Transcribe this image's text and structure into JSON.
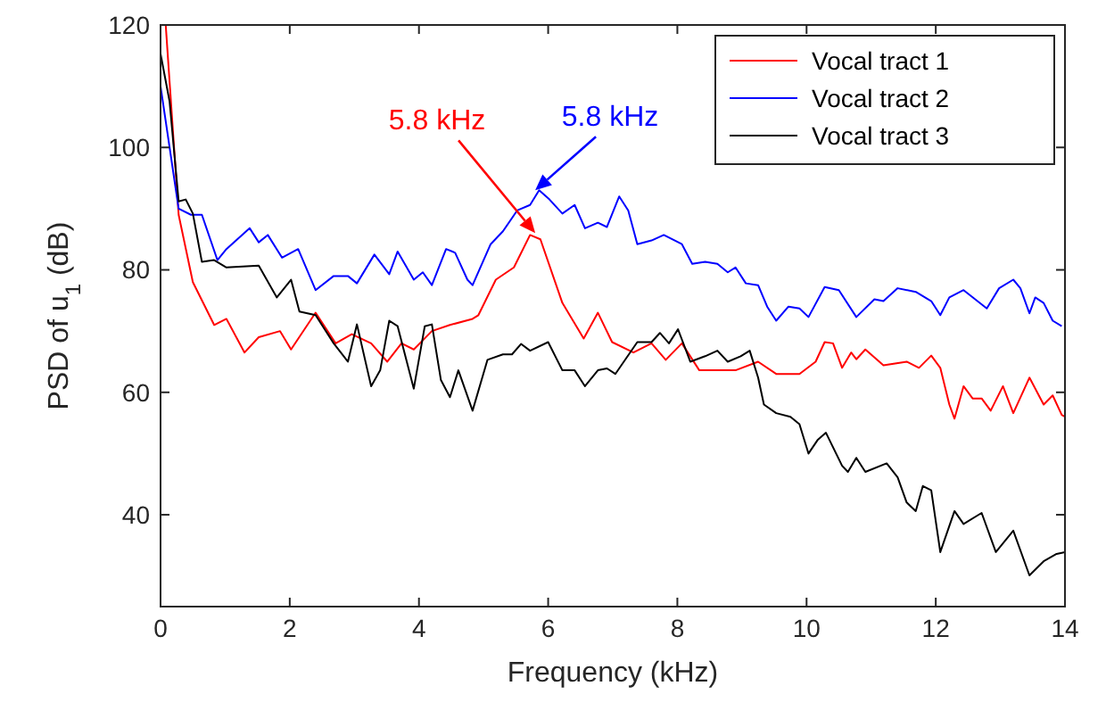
{
  "chart_data": {
    "type": "line",
    "xlabel": "Frequency (kHz)",
    "ylabel": "PSD of u$_{1}$ (dB)",
    "xlim": [
      0,
      14
    ],
    "ylim": [
      25,
      120
    ],
    "xticks": [
      0,
      2,
      4,
      6,
      8,
      10,
      12,
      14
    ],
    "yticks": [
      40,
      60,
      80,
      100,
      120
    ],
    "grid": false,
    "legend": "top right",
    "line_style": "solid",
    "marker": "none",
    "annotations": [
      {
        "text": "5.8 kHz",
        "x": 5.8,
        "y": 86
      },
      {
        "text": "5.8 kHz",
        "x": 5.8,
        "y": 93
      }
    ],
    "series": [
      {
        "name": "Vocal tract 1",
        "color": "#ff0000",
        "x": [
          0.08,
          0.28,
          0.5,
          0.83,
          1.02,
          1.3,
          1.52,
          1.85,
          2.02,
          2.4,
          2.71,
          2.96,
          3.26,
          3.51,
          3.73,
          3.92,
          4.2,
          4.48,
          4.83,
          4.92,
          5.19,
          5.47,
          5.72,
          5.88,
          6.22,
          6.55,
          6.77,
          6.99,
          7.32,
          7.6,
          7.82,
          8.07,
          8.34,
          8.62,
          8.9,
          9.25,
          9.53,
          9.89,
          10.14,
          10.28,
          10.41,
          10.55,
          10.69,
          10.77,
          10.91,
          11.19,
          11.55,
          11.74,
          11.93,
          12.07,
          12.21,
          12.29,
          12.43,
          12.57,
          12.71,
          12.85,
          13.04,
          13.2,
          13.45,
          13.67,
          13.81,
          13.95,
          14
        ],
        "values": [
          120,
          89,
          78,
          71,
          72,
          66.5,
          69,
          70,
          67,
          73,
          68,
          69.5,
          68,
          65,
          68,
          67,
          70,
          71,
          72,
          72.6,
          78.4,
          80.4,
          85.7,
          85,
          74.6,
          68.8,
          73,
          68.2,
          66.5,
          68,
          65.3,
          68,
          63.6,
          63.6,
          63.6,
          65,
          63,
          63,
          65,
          68.2,
          68,
          64,
          66.5,
          65.4,
          67,
          64.4,
          65,
          64,
          66,
          64,
          58,
          55.7,
          61,
          59,
          59,
          57,
          61,
          56.6,
          62.4,
          58,
          59.5,
          56.3,
          56
        ]
      },
      {
        "name": "Vocal tract 2",
        "color": "#0000ff",
        "x": [
          0,
          0.28,
          0.47,
          0.64,
          0.88,
          1.02,
          1.38,
          1.52,
          1.66,
          1.88,
          2.13,
          2.4,
          2.68,
          2.9,
          3.04,
          3.31,
          3.54,
          3.67,
          3.92,
          4.06,
          4.2,
          4.42,
          4.56,
          4.75,
          4.83,
          5.11,
          5.3,
          5.52,
          5.72,
          5.86,
          6.02,
          6.22,
          6.41,
          6.57,
          6.77,
          6.91,
          7.1,
          7.24,
          7.38,
          7.6,
          7.79,
          8.07,
          8.23,
          8.43,
          8.62,
          8.78,
          8.9,
          9.06,
          9.25,
          9.39,
          9.53,
          9.72,
          9.89,
          10.03,
          10.28,
          10.5,
          10.77,
          11.05,
          11.19,
          11.41,
          11.69,
          11.93,
          12.07,
          12.21,
          12.43,
          12.79,
          12.98,
          13.2,
          13.31,
          13.45,
          13.54,
          13.67,
          13.81,
          13.95
        ],
        "values": [
          110,
          90,
          89,
          89,
          81.6,
          83.4,
          86.8,
          84.5,
          85.7,
          82,
          83.4,
          76.7,
          79,
          79,
          77.8,
          82.5,
          79.3,
          83,
          78.4,
          79.6,
          77.5,
          83.4,
          82.8,
          78.4,
          77.5,
          84.2,
          86.3,
          89.7,
          90.6,
          93,
          91.5,
          89.2,
          90.6,
          86.8,
          87.7,
          87,
          92,
          89.7,
          84.2,
          84.8,
          85.7,
          84.2,
          81,
          81.3,
          81,
          79.6,
          80.4,
          77.8,
          77.5,
          74,
          71.7,
          74,
          73.7,
          72.3,
          77.2,
          76.7,
          72.3,
          75.2,
          74.9,
          77,
          76.4,
          74.9,
          72.6,
          75.5,
          76.7,
          73.7,
          77,
          78.4,
          77,
          72.9,
          75.5,
          74.6,
          71.7,
          70.8
        ]
      },
      {
        "name": "Vocal tract 3",
        "color": "#000000",
        "x": [
          0,
          0.14,
          0.28,
          0.39,
          0.5,
          0.64,
          0.83,
          1.02,
          1.52,
          1.8,
          2.02,
          2.15,
          2.4,
          2.68,
          2.9,
          3.04,
          3.26,
          3.4,
          3.54,
          3.67,
          3.92,
          4.09,
          4.2,
          4.34,
          4.48,
          4.61,
          4.83,
          5.06,
          5.3,
          5.44,
          5.58,
          5.72,
          6.0,
          6.22,
          6.41,
          6.57,
          6.77,
          6.91,
          7.04,
          7.38,
          7.6,
          7.73,
          7.87,
          8.01,
          8.2,
          8.43,
          8.62,
          8.78,
          8.98,
          9.12,
          9.25,
          9.34,
          9.53,
          9.75,
          9.89,
          10.03,
          10.17,
          10.3,
          10.55,
          10.64,
          10.77,
          10.91,
          11.24,
          11.41,
          11.55,
          11.69,
          11.8,
          11.93,
          12.07,
          12.29,
          12.43,
          12.71,
          12.93,
          13.2,
          13.45,
          13.67,
          13.87,
          14
        ],
        "values": [
          115.3,
          107.5,
          91.2,
          91.5,
          89.2,
          81.3,
          81.6,
          80.4,
          80.7,
          75.5,
          78.4,
          73.2,
          72.6,
          68,
          65,
          71.1,
          61,
          63.6,
          71.7,
          70.8,
          60.6,
          70.8,
          71.1,
          62,
          59.2,
          63.6,
          57,
          65.3,
          66.2,
          66.2,
          67.9,
          66.8,
          68.2,
          63.6,
          63.6,
          61,
          63.6,
          63.9,
          63,
          68.2,
          68.2,
          69.7,
          68,
          70.3,
          65,
          65.9,
          66.8,
          65,
          65.9,
          66.8,
          62.4,
          58,
          56.6,
          56,
          54.8,
          50,
          52.2,
          53.4,
          48,
          47,
          49.3,
          47,
          48.4,
          46.1,
          42,
          40.6,
          44.7,
          44,
          33.9,
          40.6,
          38.5,
          40.3,
          33.9,
          37.4,
          30.1,
          32.4,
          33.6,
          33.9
        ]
      }
    ]
  }
}
